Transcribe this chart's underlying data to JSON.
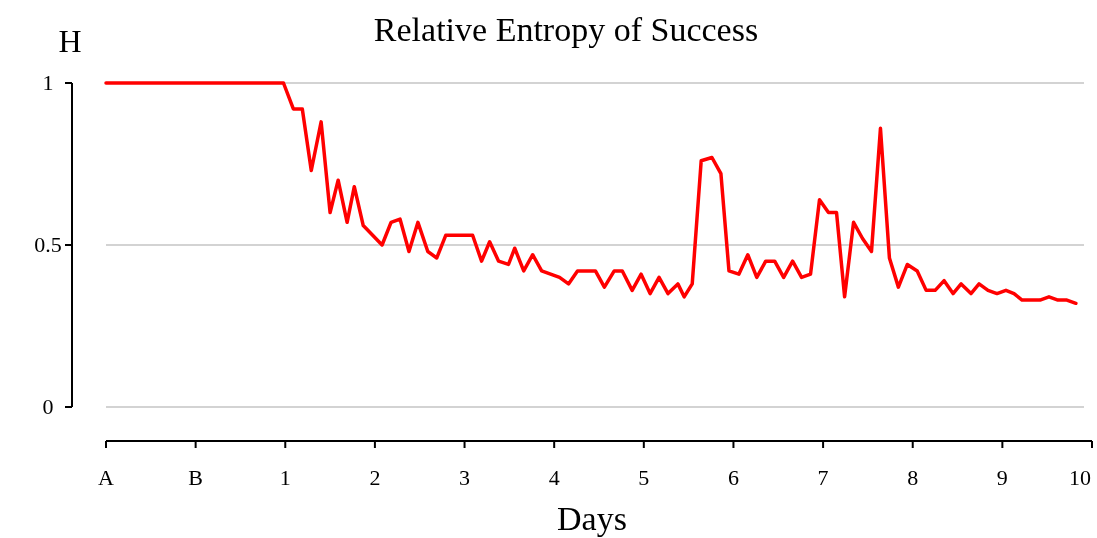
{
  "chart_data": {
    "type": "line",
    "title": "Relative Entropy of Success",
    "xlabel": "Days",
    "ylabel": "H",
    "xlim": [
      -1,
      10
    ],
    "xticks": [
      {
        "value": -1,
        "label": "A"
      },
      {
        "value": 0,
        "label": "B"
      },
      1,
      2,
      3,
      4,
      5,
      6,
      7,
      8,
      9,
      10
    ],
    "ylim": [
      0,
      1
    ],
    "yticks": [
      0,
      0.5,
      1
    ],
    "grid": "y",
    "marker": "none",
    "line_style": "solid",
    "series": [
      {
        "color": "#ff0000",
        "x": [
          -1,
          0.98,
          1.09,
          1.19,
          1.29,
          1.4,
          1.5,
          1.59,
          1.69,
          1.77,
          1.87,
          2.08,
          2.18,
          2.28,
          2.38,
          2.48,
          2.59,
          2.69,
          2.79,
          3.09,
          3.19,
          3.28,
          3.38,
          3.49,
          3.56,
          3.66,
          3.76,
          3.86,
          4.06,
          4.16,
          4.26,
          4.46,
          4.56,
          4.67,
          4.76,
          4.87,
          4.97,
          5.07,
          5.17,
          5.27,
          5.38,
          5.45,
          5.54,
          5.64,
          5.76,
          5.86,
          5.95,
          6.06,
          6.16,
          6.26,
          6.36,
          6.46,
          6.56,
          6.66,
          6.76,
          6.86,
          6.96,
          7.06,
          7.15,
          7.24,
          7.34,
          7.44,
          7.54,
          7.64,
          7.74,
          7.84,
          7.94,
          8.05,
          8.15,
          8.25,
          8.35,
          8.45,
          8.54,
          8.65,
          8.74,
          8.84,
          8.94,
          9.04,
          9.13,
          9.22,
          9.32,
          9.42,
          9.52,
          9.62,
          9.72,
          9.82
        ],
        "values": [
          1,
          1,
          0.92,
          0.92,
          0.73,
          0.88,
          0.6,
          0.7,
          0.57,
          0.68,
          0.56,
          0.5,
          0.57,
          0.58,
          0.48,
          0.57,
          0.48,
          0.46,
          0.53,
          0.53,
          0.45,
          0.51,
          0.45,
          0.44,
          0.49,
          0.42,
          0.47,
          0.42,
          0.4,
          0.38,
          0.42,
          0.42,
          0.37,
          0.42,
          0.42,
          0.36,
          0.41,
          0.35,
          0.4,
          0.35,
          0.38,
          0.34,
          0.38,
          0.76,
          0.77,
          0.72,
          0.42,
          0.41,
          0.47,
          0.4,
          0.45,
          0.45,
          0.4,
          0.45,
          0.4,
          0.41,
          0.64,
          0.6,
          0.6,
          0.34,
          0.57,
          0.52,
          0.48,
          0.86,
          0.46,
          0.37,
          0.44,
          0.42,
          0.36,
          0.36,
          0.39,
          0.35,
          0.38,
          0.35,
          0.38,
          0.36,
          0.35,
          0.36,
          0.35,
          0.33,
          0.33,
          0.33,
          0.34,
          0.33,
          0.33,
          0.32
        ]
      }
    ]
  }
}
